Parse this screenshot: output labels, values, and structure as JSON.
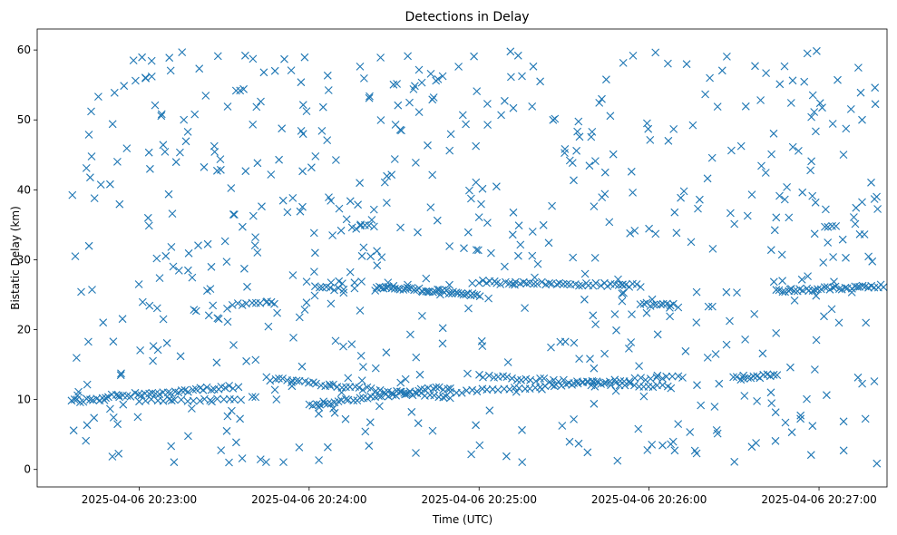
{
  "chart_data": {
    "type": "scatter",
    "title": "Detections in Delay",
    "xlabel": "Time (UTC)",
    "ylabel": "Bistatic Delay (km)",
    "marker": "x",
    "marker_color": "#1f77b4",
    "xlim": [
      "2025-04-06 20:22:24",
      "2025-04-06 20:27:24"
    ],
    "ylim": [
      -2.5,
      63
    ],
    "x_ticks": [
      "2025-04-06 20:23:00",
      "2025-04-06 20:24:00",
      "2025-04-06 20:25:00",
      "2025-04-06 20:26:00",
      "2025-04-06 20:27:00"
    ],
    "y_ticks": [
      "0",
      "10",
      "20",
      "30",
      "40",
      "50",
      "60"
    ],
    "grid": false,
    "series": [
      {
        "clusters": [
          {
            "start": "2025-04-06 20:22:36",
            "end": "2025-04-06 20:22:48",
            "y_start": 9.8,
            "y_end": 10.0,
            "count": 12
          },
          {
            "start": "2025-04-06 20:22:48",
            "end": "2025-04-06 20:23:33",
            "y_start": 10.4,
            "y_end": 11.8,
            "count": 36
          },
          {
            "start": "2025-04-06 20:23:00",
            "end": "2025-04-06 20:23:36",
            "y_start": 9.8,
            "y_end": 9.9,
            "count": 18
          },
          {
            "start": "2025-04-06 20:23:45",
            "end": "2025-04-06 20:24:50",
            "y_start": 13.0,
            "y_end": 10.3,
            "count": 45
          },
          {
            "start": "2025-04-06 20:24:00",
            "end": "2025-04-06 20:24:50",
            "y_start": 9.2,
            "y_end": 11.8,
            "count": 40
          },
          {
            "start": "2025-04-06 20:24:50",
            "end": "2025-04-06 20:26:12",
            "y_start": 11.0,
            "y_end": 13.3,
            "count": 45
          },
          {
            "start": "2025-04-06 20:25:00",
            "end": "2025-04-06 20:26:08",
            "y_start": 13.3,
            "y_end": 11.8,
            "count": 42
          },
          {
            "start": "2025-04-06 20:26:30",
            "end": "2025-04-06 20:26:45",
            "y_start": 13.0,
            "y_end": 13.5,
            "count": 14
          },
          {
            "start": "2025-04-06 20:23:33",
            "end": "2025-04-06 20:23:48",
            "y_start": 23.6,
            "y_end": 23.8,
            "count": 10
          },
          {
            "start": "2025-04-06 20:24:02",
            "end": "2025-04-06 20:24:12",
            "y_start": 26.0,
            "y_end": 25.8,
            "count": 8
          },
          {
            "start": "2025-04-06 20:24:24",
            "end": "2025-04-06 20:25:00",
            "y_start": 26.2,
            "y_end": 25.0,
            "count": 45
          },
          {
            "start": "2025-04-06 20:25:00",
            "end": "2025-04-06 20:25:57",
            "y_start": 26.8,
            "y_end": 26.3,
            "count": 45
          },
          {
            "start": "2025-04-06 20:25:57",
            "end": "2025-04-06 20:26:10",
            "y_start": 23.7,
            "y_end": 23.4,
            "count": 12
          },
          {
            "start": "2025-04-06 20:26:45",
            "end": "2025-04-06 20:27:24",
            "y_start": 25.5,
            "y_end": 26.3,
            "count": 38
          },
          {
            "start": "2025-04-06 20:24:15",
            "end": "2025-04-06 20:24:23",
            "y_start": 34.6,
            "y_end": 34.8,
            "count": 6
          },
          {
            "start": "2025-04-06 20:27:02",
            "end": "2025-04-06 20:27:06",
            "y_start": 34.6,
            "y_end": 34.6,
            "count": 4
          }
        ],
        "scattered_points": {
          "start": "2025-04-06 20:22:36",
          "end": "2025-04-06 20:27:21",
          "y_min": 0.8,
          "y_max": 59.9,
          "count": 620
        }
      }
    ]
  }
}
